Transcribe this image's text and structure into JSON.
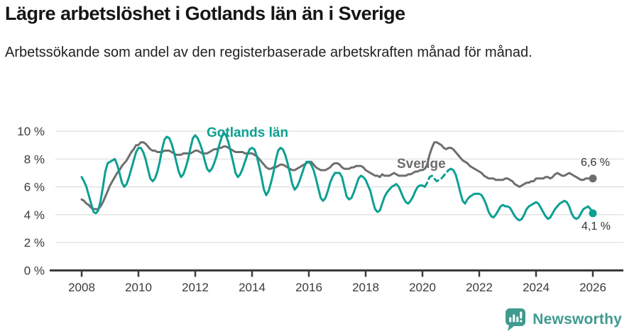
{
  "header": {
    "title": "Lägre arbetslöshet i Gotlands län än i Sverige",
    "subtitle": "Arbetssökande som andel av den registerbaserade arbetskraften månad för månad."
  },
  "footer": {
    "brand": "Newsworthy",
    "brand_color": "#3f9a8f",
    "icon": "newsworthy-chart-bubble"
  },
  "chart_data": {
    "type": "line",
    "title": "Lägre arbetslöshet i Gotlands län än i Sverige",
    "xlabel": "",
    "ylabel": "",
    "unit": "%",
    "frequency": "monthly",
    "grid": true,
    "ylim": [
      0,
      10
    ],
    "y_ticks": [
      0,
      2,
      4,
      6,
      8,
      10
    ],
    "y_tick_suffix": " %",
    "x_ticks": [
      2008,
      2010,
      2012,
      2014,
      2016,
      2018,
      2020,
      2022,
      2024,
      2026
    ],
    "x_range": [
      2008.0,
      2026.0
    ],
    "series": [
      {
        "id": "sverige",
        "name": "Sverige",
        "color": "#6e6e6e",
        "end_label": "6,6 %",
        "end_value": 6.6,
        "start_year": 2008,
        "start_month": 1,
        "values": [
          5.1,
          5.0,
          4.8,
          4.7,
          4.5,
          4.4,
          4.4,
          4.4,
          4.6,
          4.9,
          5.3,
          5.7,
          6.1,
          6.4,
          6.7,
          7.0,
          7.2,
          7.5,
          7.7,
          7.9,
          8.2,
          8.5,
          8.7,
          9.0,
          9.0,
          9.2,
          9.2,
          9.1,
          8.9,
          8.7,
          8.6,
          8.6,
          8.5,
          8.5,
          8.5,
          8.6,
          8.6,
          8.6,
          8.5,
          8.4,
          8.3,
          8.3,
          8.3,
          8.4,
          8.4,
          8.4,
          8.4,
          8.5,
          8.6,
          8.6,
          8.5,
          8.4,
          8.4,
          8.4,
          8.5,
          8.6,
          8.7,
          8.7,
          8.8,
          8.8,
          8.9,
          8.9,
          8.8,
          8.7,
          8.6,
          8.5,
          8.5,
          8.5,
          8.5,
          8.4,
          8.4,
          8.4,
          8.4,
          8.3,
          8.2,
          8.0,
          7.8,
          7.6,
          7.4,
          7.3,
          7.3,
          7.4,
          7.4,
          7.5,
          7.6,
          7.6,
          7.5,
          7.4,
          7.3,
          7.2,
          7.2,
          7.3,
          7.4,
          7.5,
          7.6,
          7.7,
          7.8,
          7.8,
          7.6,
          7.4,
          7.3,
          7.2,
          7.2,
          7.2,
          7.3,
          7.4,
          7.6,
          7.7,
          7.7,
          7.6,
          7.4,
          7.3,
          7.3,
          7.3,
          7.4,
          7.4,
          7.5,
          7.5,
          7.5,
          7.4,
          7.2,
          7.1,
          7.0,
          6.9,
          6.8,
          6.8,
          6.7,
          6.9,
          6.8,
          6.8,
          6.8,
          6.9,
          7.0,
          6.9,
          6.8,
          6.8,
          6.8,
          6.8,
          6.9,
          6.9,
          7.0,
          7.1,
          7.1,
          7.2,
          7.2,
          7.3,
          7.6,
          8.3,
          8.8,
          9.2,
          9.2,
          9.1,
          9.0,
          8.8,
          8.7,
          8.8,
          8.8,
          8.7,
          8.5,
          8.3,
          8.1,
          7.9,
          7.8,
          7.7,
          7.5,
          7.4,
          7.3,
          7.2,
          7.1,
          7.0,
          6.8,
          6.7,
          6.6,
          6.6,
          6.6,
          6.5,
          6.5,
          6.5,
          6.5,
          6.6,
          6.6,
          6.5,
          6.4,
          6.2,
          6.1,
          6.0,
          6.1,
          6.2,
          6.3,
          6.3,
          6.4,
          6.4,
          6.6,
          6.6,
          6.6,
          6.6,
          6.7,
          6.7,
          6.6,
          6.7,
          6.9,
          7.0,
          6.9,
          6.8,
          6.8,
          6.9,
          7.0,
          6.9,
          6.8,
          6.7,
          6.6,
          6.5,
          6.5,
          6.6,
          6.6,
          6.6,
          6.6
        ]
      },
      {
        "id": "gotland",
        "name": "Gotlands län",
        "color": "#0ca092",
        "end_label": "4,1 %",
        "end_value": 4.1,
        "start_year": 2008,
        "start_month": 1,
        "dash_segment": [
          145,
          155
        ],
        "values": [
          6.7,
          6.4,
          6.0,
          5.4,
          4.8,
          4.2,
          4.1,
          4.3,
          5.0,
          6.0,
          7.1,
          7.7,
          7.8,
          7.9,
          8.0,
          7.6,
          7.0,
          6.3,
          6.0,
          6.2,
          6.7,
          7.3,
          7.9,
          8.5,
          8.8,
          8.8,
          8.5,
          8.0,
          7.3,
          6.6,
          6.4,
          6.6,
          7.1,
          7.8,
          8.7,
          9.4,
          9.6,
          9.5,
          9.1,
          8.5,
          7.8,
          7.1,
          6.7,
          6.9,
          7.4,
          8.0,
          8.8,
          9.5,
          9.7,
          9.5,
          9.1,
          8.6,
          7.9,
          7.3,
          7.1,
          7.3,
          7.7,
          8.2,
          8.9,
          9.5,
          9.9,
          9.7,
          9.2,
          8.5,
          7.8,
          7.0,
          6.7,
          6.9,
          7.3,
          7.8,
          8.3,
          8.7,
          8.8,
          8.7,
          8.2,
          7.5,
          6.7,
          5.8,
          5.4,
          5.7,
          6.3,
          7.0,
          7.9,
          8.6,
          8.8,
          8.7,
          8.3,
          7.7,
          7.0,
          6.2,
          5.8,
          6.0,
          6.4,
          6.9,
          7.4,
          7.8,
          7.8,
          7.6,
          7.2,
          6.6,
          5.9,
          5.2,
          5.0,
          5.2,
          5.7,
          6.3,
          6.7,
          7.0,
          7.0,
          7.0,
          6.7,
          6.0,
          5.3,
          5.1,
          5.2,
          5.6,
          6.1,
          6.6,
          6.8,
          6.7,
          6.5,
          6.1,
          5.7,
          5.0,
          4.4,
          4.2,
          4.3,
          4.8,
          5.3,
          5.6,
          5.8,
          6.0,
          6.1,
          6.2,
          6.0,
          5.6,
          5.2,
          4.9,
          4.8,
          5.0,
          5.3,
          5.7,
          6.0,
          6.1,
          6.1,
          6.0,
          6.3,
          6.7,
          6.8,
          6.6,
          6.4,
          6.5,
          6.6,
          6.8,
          7.0,
          7.2,
          7.3,
          7.2,
          6.9,
          6.3,
          5.6,
          5.0,
          4.8,
          5.1,
          5.3,
          5.4,
          5.5,
          5.5,
          5.5,
          5.4,
          5.1,
          4.7,
          4.2,
          3.9,
          3.8,
          4.0,
          4.3,
          4.6,
          4.7,
          4.6,
          4.6,
          4.5,
          4.2,
          3.9,
          3.7,
          3.6,
          3.7,
          4.0,
          4.4,
          4.6,
          4.7,
          4.8,
          4.9,
          4.8,
          4.5,
          4.2,
          3.9,
          3.7,
          3.8,
          4.1,
          4.4,
          4.6,
          4.8,
          4.9,
          5.0,
          4.9,
          4.6,
          4.1,
          3.8,
          3.7,
          3.8,
          4.1,
          4.4,
          4.5,
          4.6,
          4.4,
          4.1
        ]
      }
    ]
  }
}
